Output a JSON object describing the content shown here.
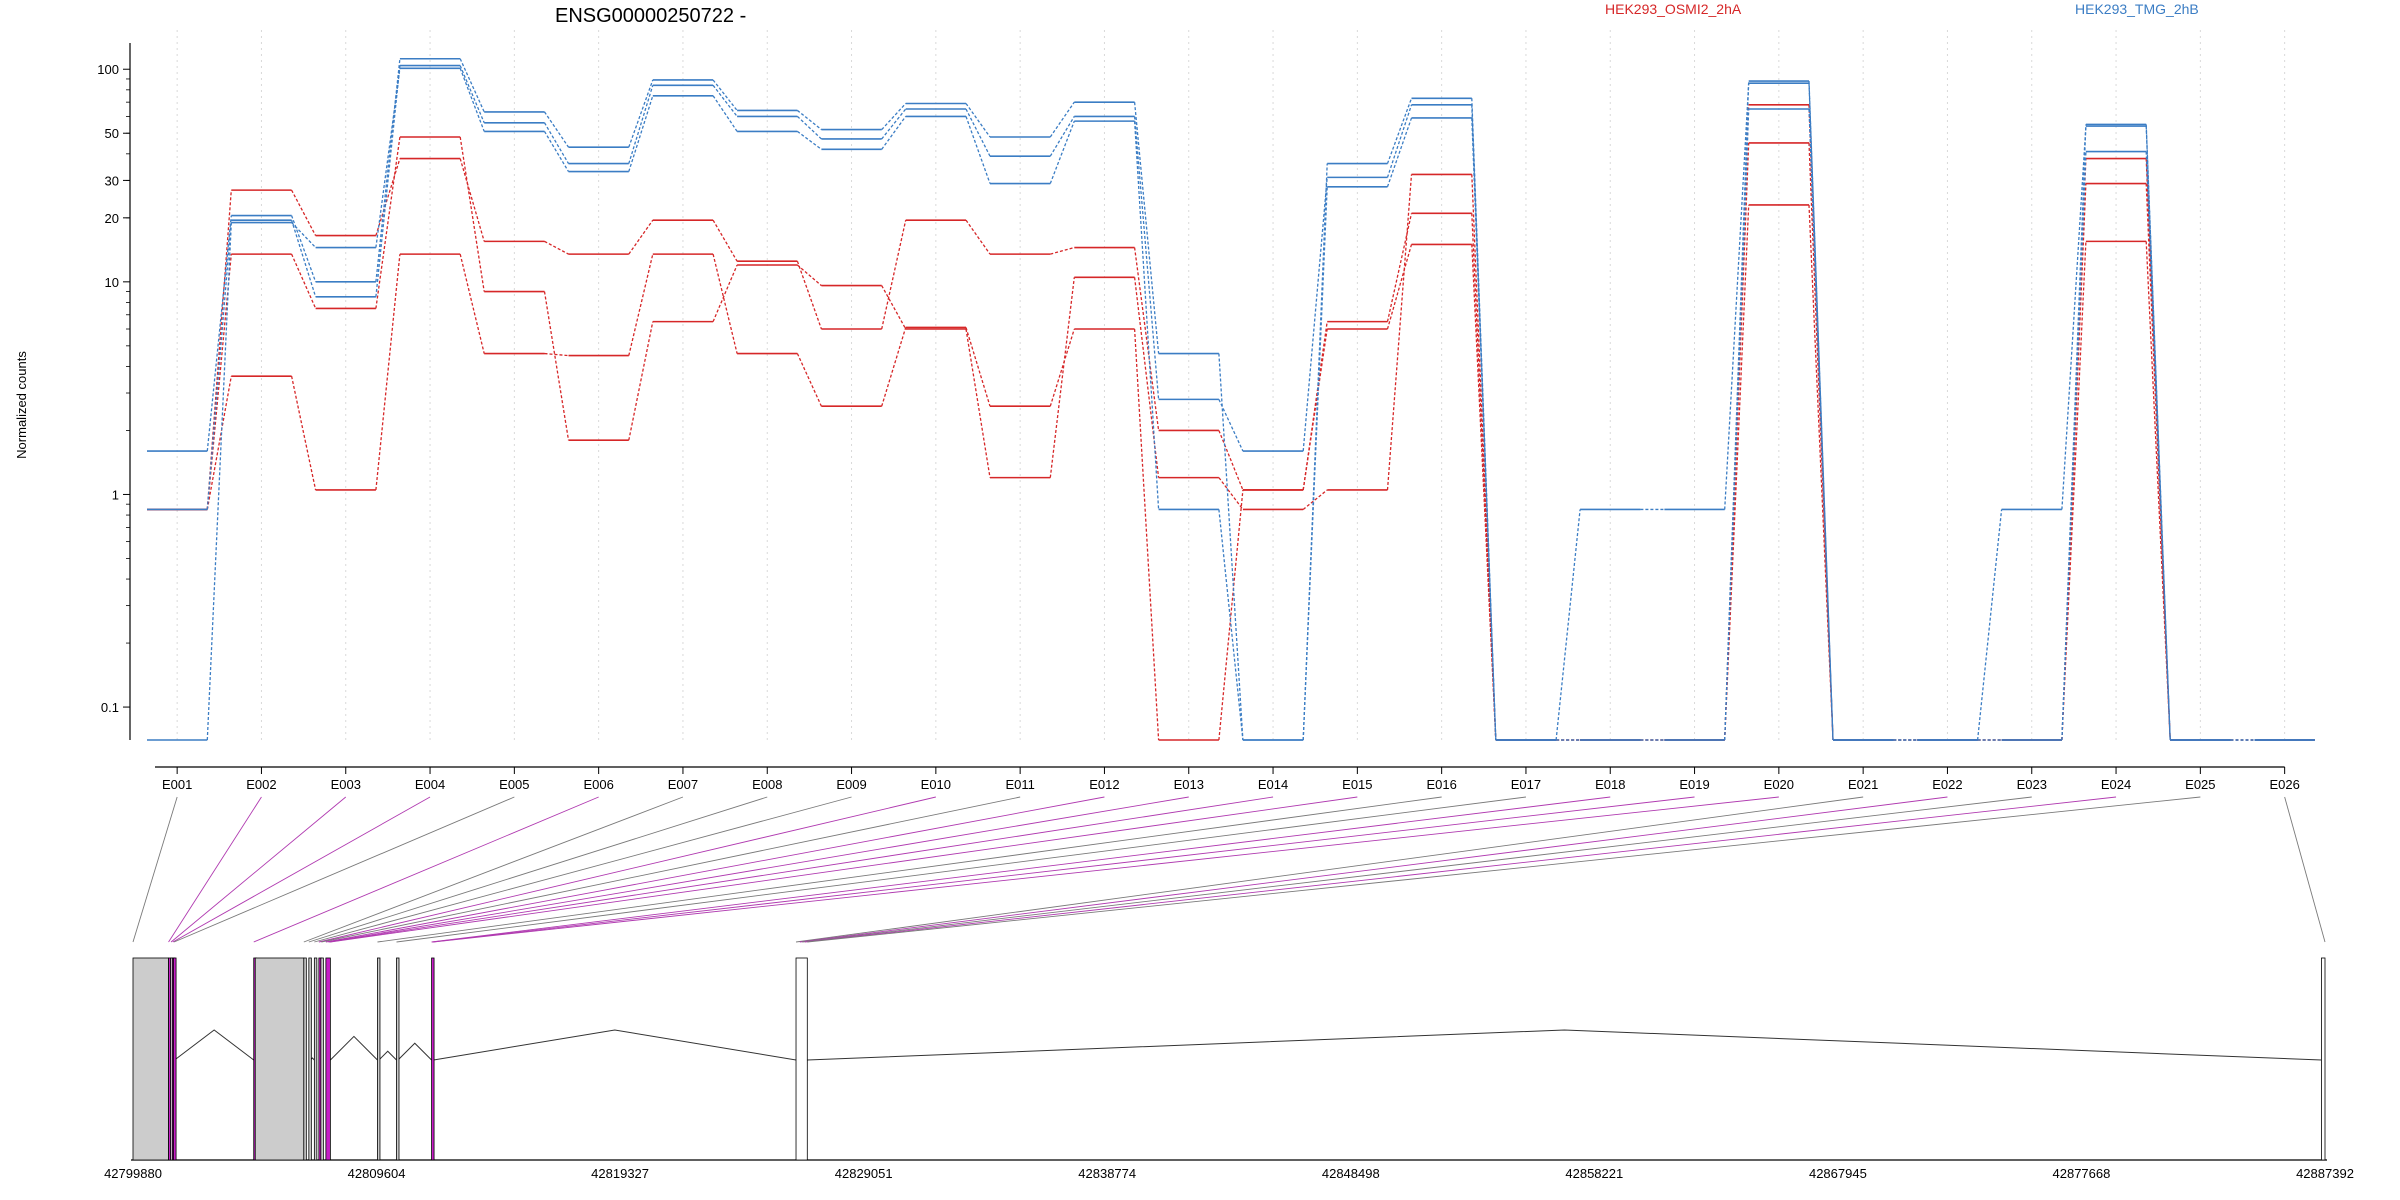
{
  "chart_data": {
    "type": "line",
    "title": "ENSG00000250722 -",
    "ylabel": "Normalized counts",
    "y_scale": "log",
    "ylim": [
      0.07,
      130
    ],
    "y_ticks": [
      0.1,
      1,
      10,
      20,
      30,
      50,
      100
    ],
    "y_tick_labels": [
      "0.1",
      "1",
      "10",
      "20",
      "30",
      "50",
      "100"
    ],
    "grid": "vertical dotted",
    "legend_placement": "top",
    "categories": [
      "E001",
      "E002",
      "E003",
      "E004",
      "E005",
      "E006",
      "E007",
      "E008",
      "E009",
      "E010",
      "E011",
      "E012",
      "E013",
      "E014",
      "E015",
      "E016",
      "E017",
      "E018",
      "E019",
      "E020",
      "E021",
      "E022",
      "E023",
      "E024",
      "E025",
      "E026"
    ],
    "series": [
      {
        "group": "HEK293_OSMI2_2hA",
        "color": "#d62728",
        "values": [
          0.85,
          13.5,
          7.5,
          48,
          9,
          1.8,
          6.5,
          12,
          9.6,
          6.0,
          1.2,
          10.5,
          1.2,
          0.85,
          1.05,
          32,
          0.07,
          0.07,
          0.07,
          68,
          0.07,
          0.07,
          0.07,
          38,
          0.07,
          0.07
        ]
      },
      {
        "group": "HEK293_OSMI2_2hA",
        "color": "#d62728",
        "values": [
          0.85,
          27,
          16.5,
          38,
          15.5,
          13.5,
          19.5,
          12.5,
          6.0,
          19.5,
          13.5,
          14.5,
          2.0,
          1.05,
          6.5,
          21,
          0.07,
          0.07,
          0.07,
          45,
          0.07,
          0.07,
          0.07,
          29,
          0.07,
          0.07
        ]
      },
      {
        "group": "HEK293_OSMI2_2hA",
        "color": "#d62728",
        "values": [
          0.85,
          3.6,
          1.05,
          13.5,
          4.6,
          4.5,
          13.5,
          4.6,
          2.6,
          6.1,
          2.6,
          6.0,
          0.07,
          1.05,
          6.0,
          15,
          0.07,
          0.07,
          0.07,
          23,
          0.07,
          0.07,
          0.07,
          15.5,
          0.07,
          0.07
        ]
      },
      {
        "group": "HEK293_TMG_2hB",
        "color": "#3b7dc4",
        "values": [
          1.6,
          20.5,
          10,
          112,
          63,
          43,
          89,
          64,
          52,
          69,
          48,
          70,
          4.6,
          0.07,
          36,
          73,
          0.07,
          0.85,
          0.85,
          86,
          0.07,
          0.07,
          0.85,
          54,
          0.07,
          0.07
        ]
      },
      {
        "group": "HEK293_TMG_2hB",
        "color": "#3b7dc4",
        "values": [
          0.85,
          19.5,
          8.5,
          104,
          56,
          36,
          84,
          60,
          47,
          65,
          39,
          60,
          2.8,
          1.6,
          31,
          68,
          0.07,
          0.07,
          0.07,
          88,
          0.07,
          0.07,
          0.07,
          55,
          0.07,
          0.07
        ]
      },
      {
        "group": "HEK293_TMG_2hB",
        "color": "#3b7dc4",
        "values": [
          0.07,
          19,
          14.5,
          101,
          51,
          33,
          75,
          51,
          42,
          60,
          29,
          57,
          0.85,
          0.07,
          28,
          59,
          0.07,
          0.07,
          0.07,
          65,
          0.07,
          0.07,
          0.07,
          41,
          0.07,
          0.07
        ]
      }
    ],
    "legend": [
      "HEK293_OSMI2_2hA",
      "HEK293_TMG_2hB"
    ],
    "gene_model": {
      "coord_min": 42799880,
      "coord_max": 42887392,
      "coord_ticks": [
        "42799880",
        "42809604",
        "42819327",
        "42829051",
        "42838774",
        "42848498",
        "42858221",
        "42867945",
        "42877668",
        "42887392"
      ],
      "exons": [
        {
          "start": 42799880,
          "end": 42801300,
          "color": "#cccccc"
        },
        {
          "start": 42801300,
          "end": 42801380,
          "color": "#c71ec7"
        },
        {
          "start": 42801380,
          "end": 42801450,
          "color": "#cccccc"
        },
        {
          "start": 42801450,
          "end": 42801500,
          "color": "#c71ec7"
        },
        {
          "start": 42801500,
          "end": 42801540,
          "color": "#c71ec7"
        },
        {
          "start": 42804700,
          "end": 42804760,
          "color": "#c71ec7"
        },
        {
          "start": 42804760,
          "end": 42806700,
          "color": "#cccccc"
        },
        {
          "start": 42806700,
          "end": 42806760,
          "color": "#cccccc"
        },
        {
          "start": 42806900,
          "end": 42806960,
          "color": "#cccccc"
        },
        {
          "start": 42807120,
          "end": 42807180,
          "color": "#cccccc"
        },
        {
          "start": 42807300,
          "end": 42807380,
          "color": "#c71ec7"
        },
        {
          "start": 42807380,
          "end": 42807440,
          "color": "#cccccc"
        },
        {
          "start": 42807580,
          "end": 42807760,
          "color": "#c71ec7"
        },
        {
          "start": 42809640,
          "end": 42809700,
          "color": "#cccccc"
        },
        {
          "start": 42810400,
          "end": 42810460,
          "color": "#cccccc"
        },
        {
          "start": 42811800,
          "end": 42811880,
          "color": "#c71ec7"
        },
        {
          "start": 42826350,
          "end": 42826800,
          "color": "#ffffff"
        },
        {
          "start": 42887250,
          "end": 42887392,
          "color": "#ffffff"
        }
      ]
    }
  }
}
